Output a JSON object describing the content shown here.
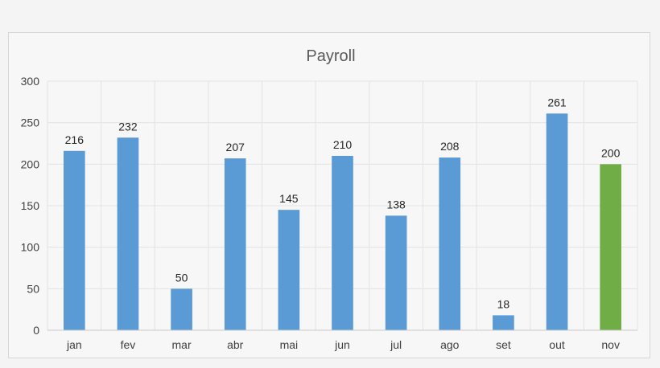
{
  "chart_data": {
    "type": "bar",
    "title": "Payroll",
    "xlabel": "",
    "ylabel": "",
    "categories": [
      "jan",
      "fev",
      "mar",
      "abr",
      "mai",
      "jun",
      "jul",
      "ago",
      "set",
      "out",
      "nov"
    ],
    "values": [
      216,
      232,
      50,
      207,
      145,
      210,
      138,
      208,
      18,
      261,
      200
    ],
    "ylim": [
      0,
      300
    ],
    "yticks": [
      0,
      50,
      100,
      150,
      200,
      250,
      300
    ],
    "colors": {
      "bar": "#5b9bd5",
      "highlight_bar": "#70ad47",
      "grid": "#e3e3e3",
      "axis": "#c8c8c8"
    },
    "highlight_category": "nov",
    "grid": true,
    "data_labels": true,
    "legend": "none"
  }
}
